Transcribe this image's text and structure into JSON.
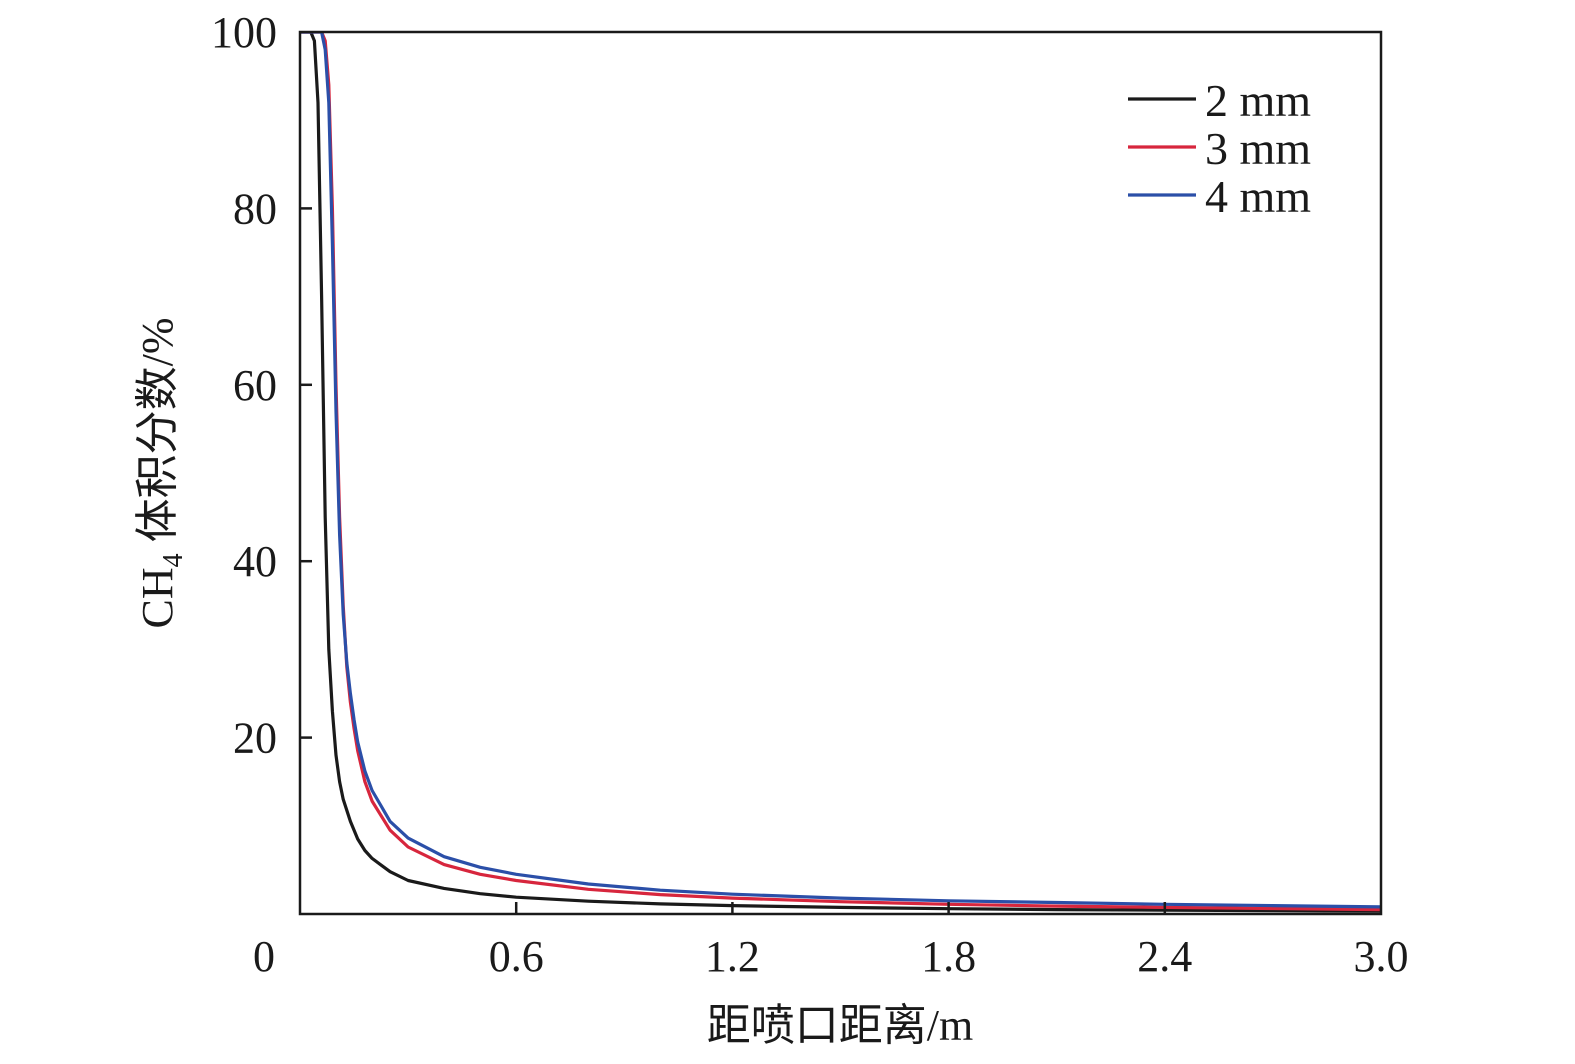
{
  "chart_data": {
    "type": "line",
    "title": "",
    "xlabel": "距喷口距离/m",
    "ylabel_main": "CH",
    "ylabel_sub": "4",
    "ylabel_rest": " 体积分数/%",
    "xlim": [
      0,
      3.0
    ],
    "ylim": [
      0,
      100
    ],
    "x_ticks": [
      0,
      0.6,
      1.2,
      1.8,
      2.4,
      3.0
    ],
    "x_tick_labels": [
      "0",
      "0.6",
      "1.2",
      "1.8",
      "2.4",
      "3.0"
    ],
    "y_ticks": [
      20,
      40,
      60,
      80,
      100
    ],
    "y_tick_labels": [
      "20",
      "40",
      "60",
      "80",
      "100"
    ],
    "grid": false,
    "legend_position": "top-right",
    "series": [
      {
        "name": "2 mm",
        "color": "#1a1a1a",
        "x": [
          0,
          0.03,
          0.04,
          0.05,
          0.06,
          0.07,
          0.08,
          0.09,
          0.1,
          0.11,
          0.12,
          0.14,
          0.16,
          0.18,
          0.2,
          0.25,
          0.3,
          0.4,
          0.5,
          0.6,
          0.8,
          1.0,
          1.2,
          1.5,
          1.8,
          2.1,
          2.4,
          2.7,
          3.0
        ],
        "y": [
          100,
          100,
          99,
          92,
          70,
          45,
          30,
          23,
          18,
          15,
          13,
          10.5,
          8.5,
          7.2,
          6.3,
          4.8,
          3.8,
          2.9,
          2.3,
          1.9,
          1.45,
          1.15,
          0.95,
          0.75,
          0.6,
          0.5,
          0.43,
          0.37,
          0.33
        ]
      },
      {
        "name": "3 mm",
        "color": "#d7263d",
        "x": [
          0,
          0.06,
          0.07,
          0.08,
          0.09,
          0.1,
          0.11,
          0.12,
          0.13,
          0.14,
          0.15,
          0.16,
          0.18,
          0.2,
          0.25,
          0.3,
          0.4,
          0.5,
          0.6,
          0.8,
          1.0,
          1.2,
          1.5,
          1.8,
          2.1,
          2.4,
          2.7,
          3.0
        ],
        "y": [
          100,
          100,
          99,
          94,
          80,
          60,
          45,
          35,
          28,
          24,
          21,
          18.5,
          15,
          12.8,
          9.5,
          7.6,
          5.6,
          4.5,
          3.8,
          2.8,
          2.2,
          1.8,
          1.4,
          1.1,
          0.9,
          0.75,
          0.62,
          0.5
        ]
      },
      {
        "name": "4 mm",
        "color": "#2b4fa8",
        "x": [
          0,
          0.06,
          0.07,
          0.08,
          0.09,
          0.1,
          0.11,
          0.12,
          0.13,
          0.14,
          0.15,
          0.16,
          0.18,
          0.2,
          0.25,
          0.3,
          0.4,
          0.5,
          0.6,
          0.8,
          1.0,
          1.2,
          1.5,
          1.8,
          2.1,
          2.4,
          2.7,
          3.0
        ],
        "y": [
          100,
          100,
          98,
          92,
          76,
          57,
          43,
          34,
          28.5,
          25,
          22,
          19.5,
          16.2,
          14,
          10.5,
          8.6,
          6.5,
          5.3,
          4.5,
          3.4,
          2.7,
          2.25,
          1.8,
          1.5,
          1.3,
          1.1,
          0.95,
          0.8
        ]
      }
    ]
  }
}
